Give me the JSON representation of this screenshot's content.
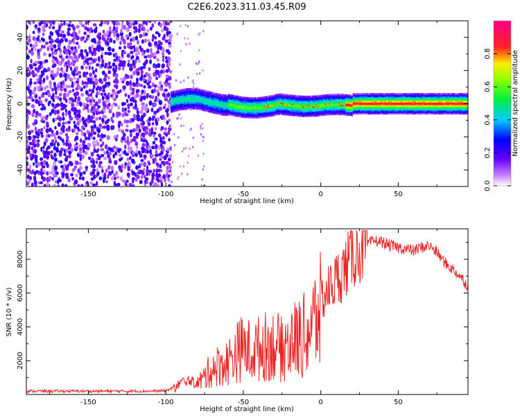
{
  "title": "C2E6.2023.311.03.45.R09",
  "chart_data": [
    {
      "type": "heatmap",
      "title": "C2E6.2023.311.03.45.R09",
      "xlabel": "Height of straight line (km)",
      "ylabel": "Frequency (Hz)",
      "xlim": [
        -190,
        95
      ],
      "ylim": [
        -50,
        50
      ],
      "xticks": [
        -150,
        -100,
        -50,
        0,
        50
      ],
      "yticks": [
        40,
        20,
        0,
        -20,
        -40
      ],
      "colorbar": {
        "label": "Normalized spectral amplitude",
        "range": [
          0,
          1
        ],
        "ticks": [
          "0.0",
          "0.2",
          "0.4",
          "0.6",
          "0.8"
        ],
        "colormap": "rainbow (violet → blue → cyan → green → yellow → red → magenta)"
      },
      "description_points": [
        {
          "x": -190,
          "x_end": -97,
          "feature": "broadband noise across full frequency range"
        },
        {
          "x": -97,
          "x_end": 95,
          "feature": "narrow band centered near 0 Hz",
          "center_hz": 0,
          "halfwidth_hz": 4
        }
      ]
    },
    {
      "type": "line",
      "xlabel": "Height of straight line (km)",
      "ylabel": "SNR (10 * v/v)",
      "xlim": [
        -190,
        95
      ],
      "ylim": [
        0,
        9800
      ],
      "xticks": [
        -150,
        -100,
        -50,
        0,
        50
      ],
      "yticks": [
        2000,
        4000,
        6000,
        8000
      ],
      "color": "#ee2222",
      "series": [
        {
          "name": "SNR",
          "x": [
            -190,
            -170,
            -150,
            -130,
            -110,
            -100,
            -95,
            -90,
            -85,
            -80,
            -75,
            -70,
            -65,
            -60,
            -55,
            -50,
            -45,
            -40,
            -35,
            -30,
            -25,
            -20,
            -15,
            -10,
            -5,
            0,
            5,
            10,
            15,
            20,
            25,
            30,
            35,
            40,
            45,
            50,
            55,
            60,
            65,
            70,
            75,
            80,
            85,
            90,
            95
          ],
          "y": [
            200,
            200,
            200,
            200,
            200,
            220,
            400,
            800,
            900,
            700,
            1200,
            1800,
            2000,
            2200,
            2800,
            3200,
            2900,
            3100,
            3300,
            3400,
            3000,
            3600,
            3800,
            4000,
            4800,
            5600,
            6200,
            6800,
            7400,
            8200,
            8600,
            8900,
            9100,
            9000,
            8800,
            8700,
            8600,
            8500,
            8700,
            8800,
            8400,
            7800,
            7400,
            7000,
            6400
          ]
        }
      ]
    }
  ]
}
